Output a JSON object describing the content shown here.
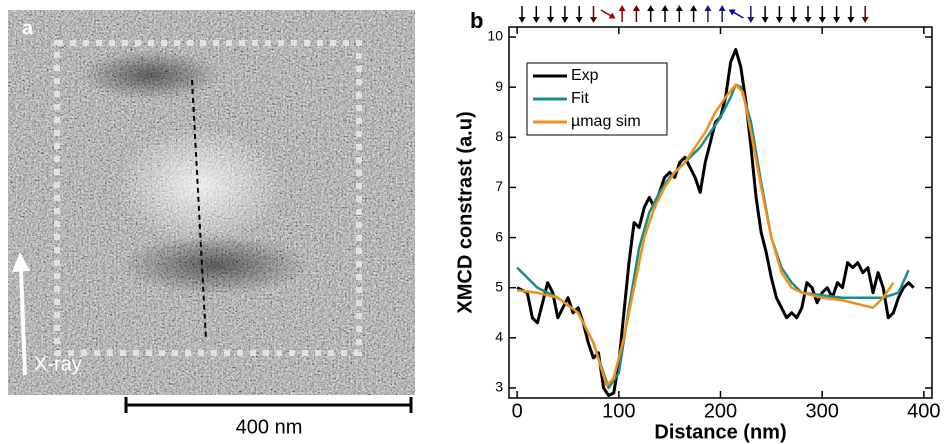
{
  "panel_a": {
    "label": "a",
    "arrow_label": "X-ray",
    "scale_bar": "400 nm"
  },
  "chart_data": {
    "type": "line",
    "panel_label": "b",
    "xlabel": "Distance (nm)",
    "ylabel": "XMCD constrast (a.u)",
    "xlim": [
      -8,
      408
    ],
    "ylim": [
      2.8,
      10.2
    ],
    "xticks": [
      0,
      100,
      200,
      300,
      400
    ],
    "yticks": [
      3,
      4,
      5,
      6,
      7,
      8,
      9,
      10
    ],
    "legend": "upper left",
    "series": [
      {
        "name": "Exp",
        "color": "#000000",
        "x": [
          0,
          5,
          10,
          15,
          20,
          25,
          30,
          35,
          40,
          45,
          50,
          55,
          60,
          65,
          70,
          75,
          80,
          85,
          90,
          95,
          100,
          105,
          110,
          115,
          120,
          125,
          130,
          135,
          140,
          145,
          150,
          155,
          160,
          165,
          170,
          175,
          180,
          185,
          190,
          195,
          200,
          205,
          210,
          215,
          220,
          225,
          230,
          235,
          240,
          245,
          250,
          255,
          260,
          265,
          270,
          275,
          280,
          285,
          290,
          295,
          300,
          305,
          310,
          315,
          320,
          325,
          330,
          335,
          340,
          345,
          350,
          355,
          360,
          365,
          370,
          375,
          380,
          385,
          390
        ],
        "values": [
          5.0,
          4.95,
          4.9,
          4.4,
          4.3,
          4.7,
          5.1,
          4.9,
          4.4,
          4.6,
          4.8,
          4.5,
          4.6,
          4.3,
          3.9,
          3.6,
          3.7,
          3.0,
          2.85,
          2.9,
          3.5,
          4.5,
          5.5,
          6.3,
          6.2,
          6.6,
          6.8,
          6.6,
          6.9,
          7.2,
          7.3,
          7.2,
          7.5,
          7.6,
          7.4,
          7.2,
          6.9,
          7.5,
          7.9,
          8.3,
          8.4,
          8.8,
          9.5,
          9.75,
          9.4,
          8.7,
          7.8,
          6.8,
          6.1,
          5.7,
          5.2,
          4.8,
          4.6,
          4.4,
          4.5,
          4.4,
          4.6,
          5.1,
          5.0,
          4.7,
          4.9,
          5.0,
          4.8,
          5.1,
          5.0,
          5.5,
          5.4,
          5.5,
          5.3,
          5.4,
          4.9,
          5.3,
          5.0,
          4.4,
          4.5,
          4.8,
          5.0,
          5.1,
          5.0
        ]
      },
      {
        "name": "Fit",
        "color": "#1a8c8c",
        "x": [
          0,
          20,
          40,
          60,
          75,
          90,
          100,
          110,
          120,
          130,
          140,
          150,
          160,
          170,
          180,
          190,
          200,
          210,
          215,
          220,
          230,
          240,
          250,
          260,
          270,
          280,
          300,
          320,
          340,
          360,
          375,
          385
        ],
        "values": [
          5.4,
          5.0,
          4.8,
          4.5,
          3.9,
          3.0,
          3.3,
          4.6,
          5.8,
          6.5,
          6.9,
          7.2,
          7.4,
          7.6,
          7.8,
          8.1,
          8.4,
          8.8,
          9.05,
          9.0,
          8.3,
          7.1,
          6.0,
          5.4,
          5.1,
          4.9,
          4.85,
          4.8,
          4.8,
          4.8,
          4.9,
          5.35
        ]
      },
      {
        "name": "µmag sim",
        "color": "#f39019",
        "x": [
          0,
          20,
          40,
          60,
          75,
          88,
          95,
          105,
          115,
          125,
          135,
          145,
          155,
          165,
          175,
          185,
          195,
          205,
          215,
          222,
          230,
          240,
          250,
          260,
          270,
          280,
          300,
          320,
          340,
          350,
          360,
          370
        ],
        "values": [
          4.95,
          4.9,
          4.8,
          4.5,
          3.9,
          3.05,
          3.2,
          4.0,
          5.0,
          6.0,
          6.6,
          7.0,
          7.3,
          7.5,
          7.8,
          8.1,
          8.5,
          8.8,
          9.05,
          8.9,
          8.1,
          7.0,
          6.0,
          5.3,
          5.0,
          4.9,
          4.8,
          4.75,
          4.65,
          4.6,
          4.8,
          5.1
        ]
      }
    ]
  }
}
